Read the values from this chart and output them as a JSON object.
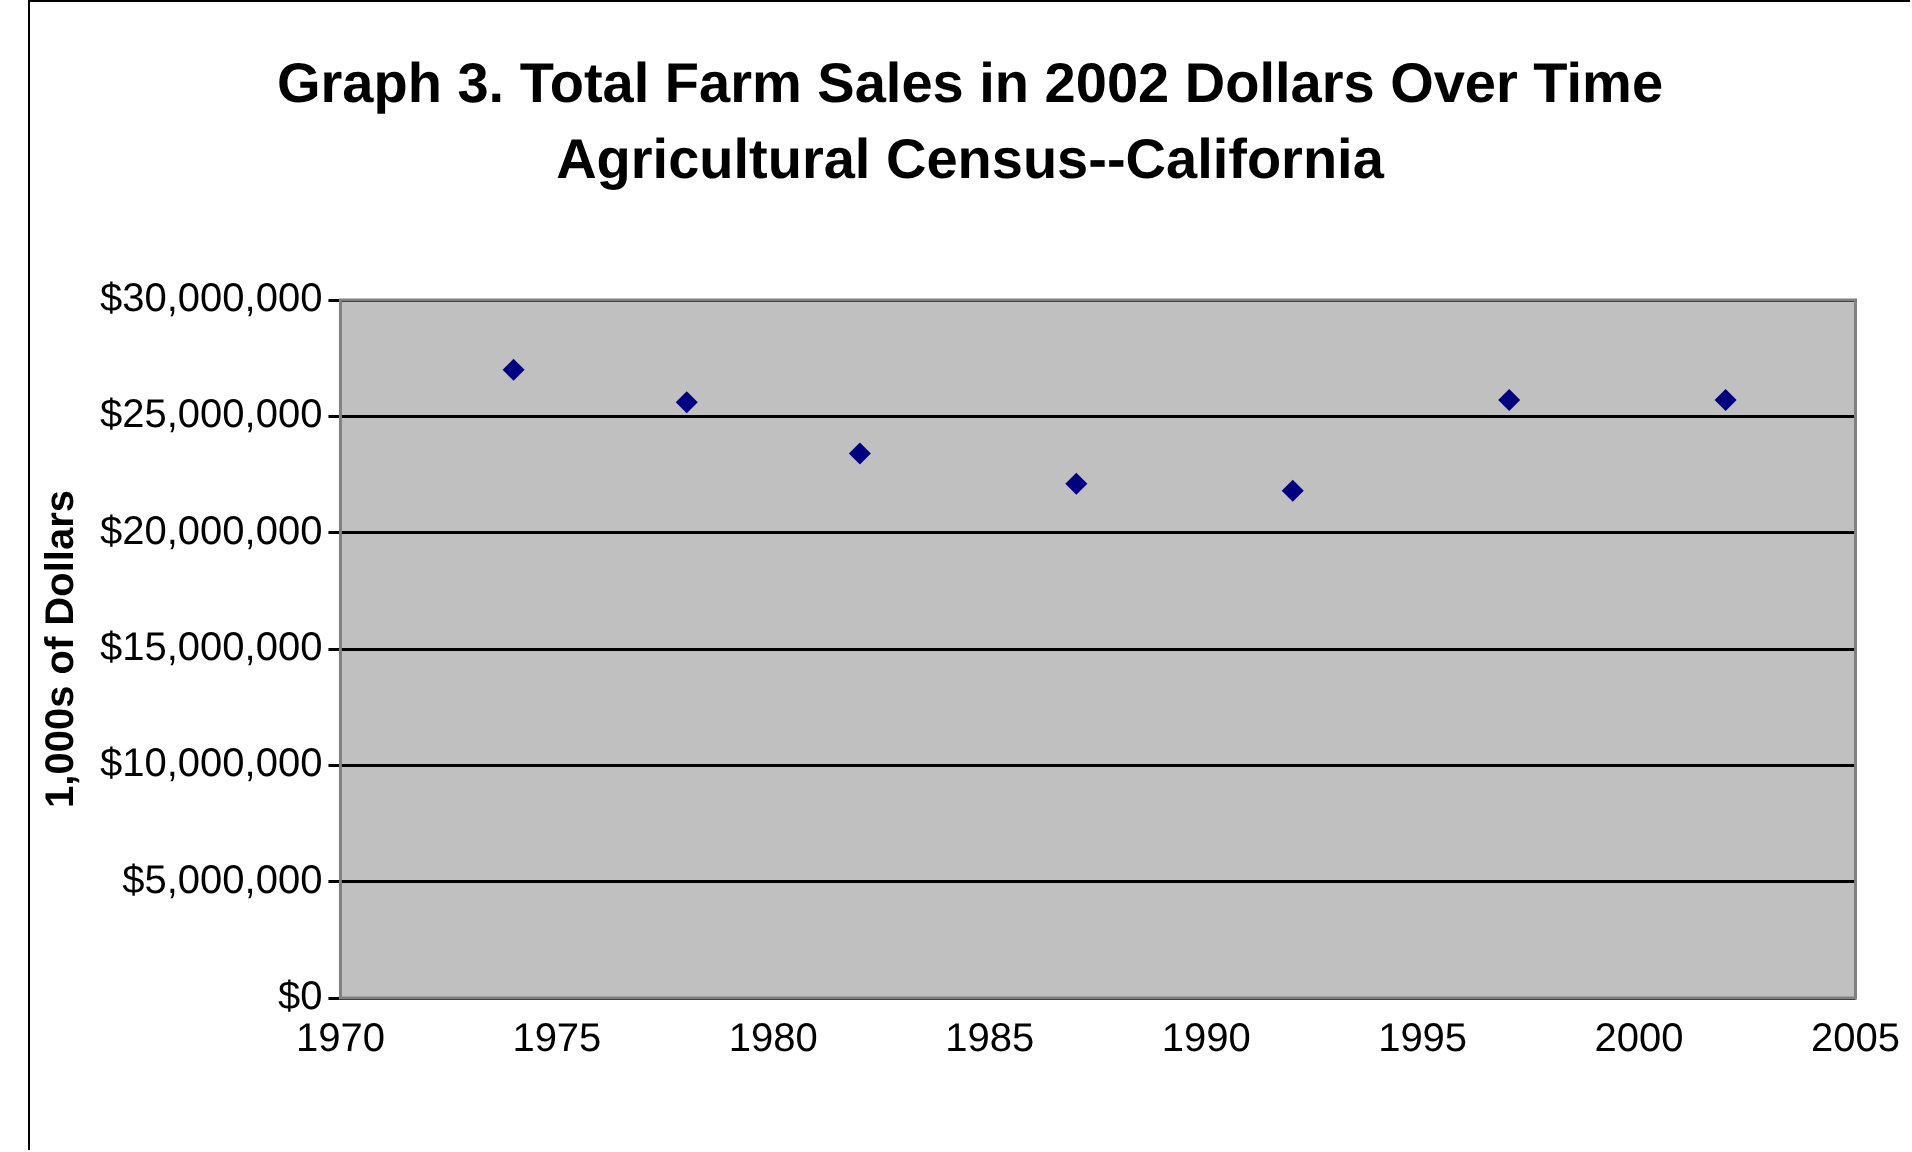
{
  "chart_data": {
    "type": "scatter",
    "title": "Graph 3.  Total Farm Sales  in 2002 Dollars Over Time Agricultural Census--California",
    "ylabel": "1,000s of Dollars",
    "x": [
      1974,
      1978,
      1982,
      1987,
      1992,
      1997,
      2002
    ],
    "series": [
      {
        "color": "#000080",
        "values": [
          27000000,
          25600000,
          23400000,
          22100000,
          21800000,
          25700000,
          25700000
        ]
      }
    ],
    "xlim": [
      1970,
      2005
    ],
    "xticks": [
      1970,
      1975,
      1980,
      1985,
      1990,
      1995,
      2000,
      2005
    ],
    "ylim": [
      0,
      30000000
    ],
    "yticks": [
      {
        "value": 0,
        "label": "$0"
      },
      {
        "value": 5000000,
        "label": "$5,000,000"
      },
      {
        "value": 10000000,
        "label": "$10,000,000"
      },
      {
        "value": 15000000,
        "label": "$15,000,000"
      },
      {
        "value": 20000000,
        "label": "$20,000,000"
      },
      {
        "value": 25000000,
        "label": "$25,000,000"
      },
      {
        "value": 30000000,
        "label": "$30,000,000"
      }
    ],
    "grid": "y",
    "legend": false,
    "marker": "diamond"
  }
}
